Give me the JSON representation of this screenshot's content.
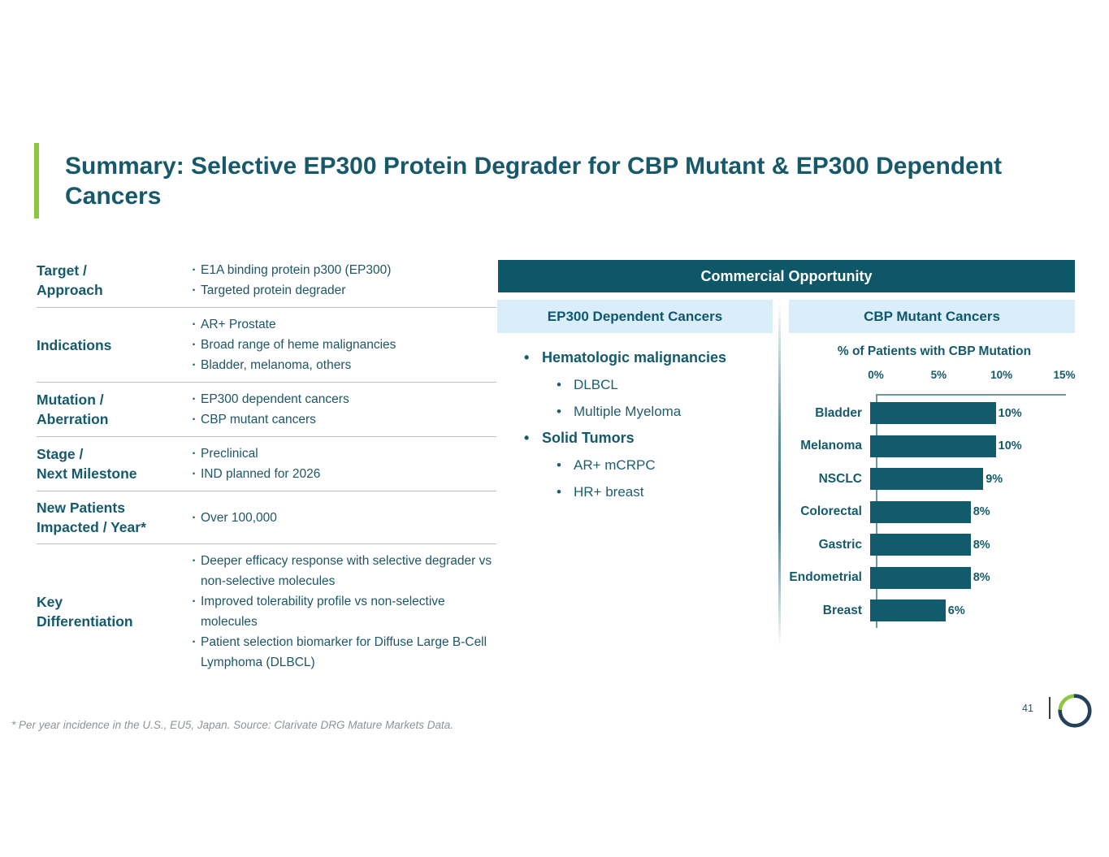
{
  "slide": {
    "title": "Summary: Selective EP300 Protein Degrader for CBP Mutant & EP300 Dependent Cancers",
    "footnote": "* Per year incidence in the U.S., EU5, Japan. Source: Clarivate DRG Mature Markets Data.",
    "page_number": "41"
  },
  "colors": {
    "accent_green": "#8dc63f",
    "header_teal": "#0d5768",
    "teal_text": "#155a6c",
    "body_text": "#1e5666",
    "subheader_bg": "#daeefa",
    "bar_fill": "#115b6c",
    "table_divider": "#b9bfc2",
    "footnote_gray": "#8d9397",
    "logo_navy": "#25415a"
  },
  "profile_table": {
    "rows": [
      {
        "label": "Target /\nApproach",
        "bullets": [
          "E1A binding protein p300 (EP300)",
          "Targeted protein degrader"
        ]
      },
      {
        "label": "Indications",
        "bullets": [
          "AR+ Prostate",
          "Broad range of heme malignancies",
          "Bladder, melanoma, others"
        ]
      },
      {
        "label": "Mutation /\nAberration",
        "bullets": [
          "EP300 dependent cancers",
          "CBP mutant cancers"
        ]
      },
      {
        "label": "Stage /\nNext Milestone",
        "bullets": [
          "Preclinical",
          "IND planned for 2026"
        ]
      },
      {
        "label": "New Patients\nImpacted / Year*",
        "bullets": [
          "Over 100,000"
        ]
      },
      {
        "label": "Key\nDifferentiation",
        "bullets": [
          "Deeper efficacy response with selective degrader vs non-selective molecules",
          "Improved tolerability profile vs non-selective molecules",
          "Patient selection biomarker for Diffuse Large B-Cell Lymphoma (DLBCL)"
        ]
      }
    ]
  },
  "commercial": {
    "header": "Commercial Opportunity",
    "left_header": "EP300 Dependent Cancers",
    "right_header": "CBP Mutant Cancers",
    "groups": [
      {
        "label": "Hematologic malignancies",
        "items": [
          "DLBCL",
          "Multiple Myeloma"
        ]
      },
      {
        "label": "Solid Tumors",
        "items": [
          "AR+ mCRPC",
          "HR+ breast"
        ]
      }
    ]
  },
  "chart_data": {
    "type": "bar",
    "orientation": "horizontal",
    "title": "% of Patients with CBP Mutation",
    "categories": [
      "Bladder",
      "Melanoma",
      "NSCLC",
      "Colorectal",
      "Gastric",
      "Endometrial",
      "Breast"
    ],
    "values": [
      10,
      10,
      9,
      8,
      8,
      8,
      6
    ],
    "value_labels": [
      "10%",
      "10%",
      "9%",
      "8%",
      "8%",
      "8%",
      "6%"
    ],
    "axis": {
      "ticks": [
        "0%",
        "5%",
        "10%",
        "15%"
      ],
      "min": 0,
      "max": 15,
      "unit": "%"
    },
    "bar_color": "#115b6c",
    "grid": false,
    "legend": false,
    "xlabel": "",
    "ylabel": ""
  }
}
